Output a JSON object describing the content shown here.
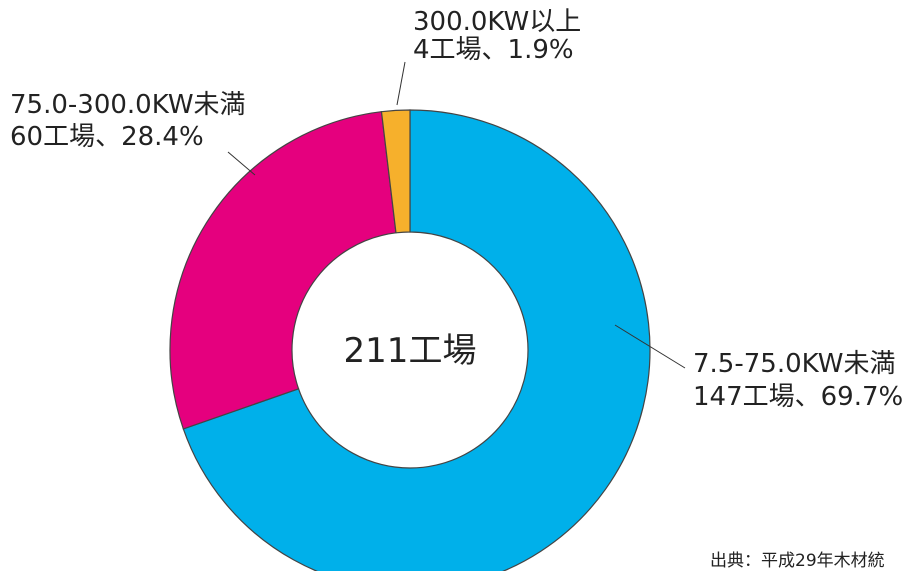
{
  "chart_data": {
    "type": "pie",
    "categories": [
      "7.5-75.0KW未満",
      "75.0-300.0KW未満",
      "300.0KW以上"
    ],
    "values": [
      147,
      60,
      4
    ],
    "value_labels": [
      "147工場、69.7%",
      "60工場、28.4%",
      "4工場、1.9%"
    ],
    "colors": [
      "#00b0ea",
      "#e5007e",
      "#f6b02c"
    ],
    "center_label": "211工場",
    "source": "出典：平成29年木材統"
  }
}
